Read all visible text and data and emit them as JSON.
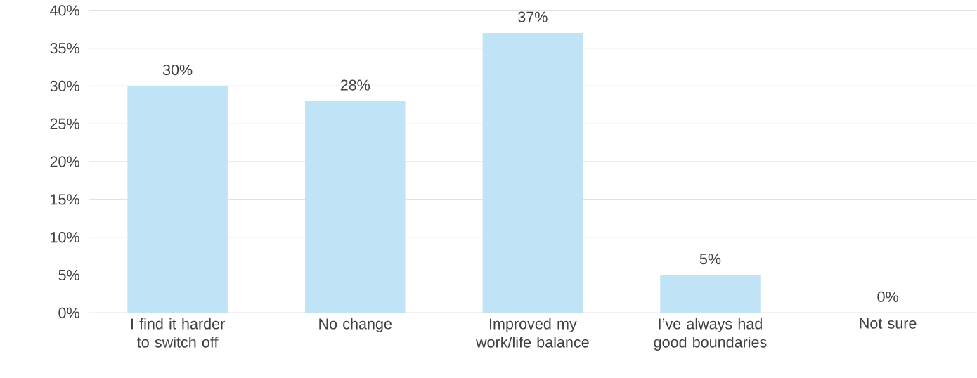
{
  "chart_data": {
    "type": "bar",
    "categories": [
      "I find it harder to switch off",
      "No change",
      "Improved my work/life balance",
      "I’ve always had good boundaries",
      "Not sure"
    ],
    "values": [
      30,
      28,
      37,
      5,
      0
    ],
    "value_labels": [
      "30%",
      "28%",
      "37%",
      "5%",
      "0%"
    ],
    "color": "#c0e4f5",
    "ylim": [
      0,
      40
    ],
    "yticks": [
      {
        "value": 0,
        "label": "0%"
      },
      {
        "value": 5,
        "label": "5%"
      },
      {
        "value": 10,
        "label": "10%"
      },
      {
        "value": 15,
        "label": "15%"
      },
      {
        "value": 20,
        "label": "20%"
      },
      {
        "value": 25,
        "label": "25%"
      },
      {
        "value": 30,
        "label": "30%"
      },
      {
        "value": 35,
        "label": "35%"
      },
      {
        "value": 40,
        "label": "40%"
      }
    ],
    "grid": "y"
  }
}
